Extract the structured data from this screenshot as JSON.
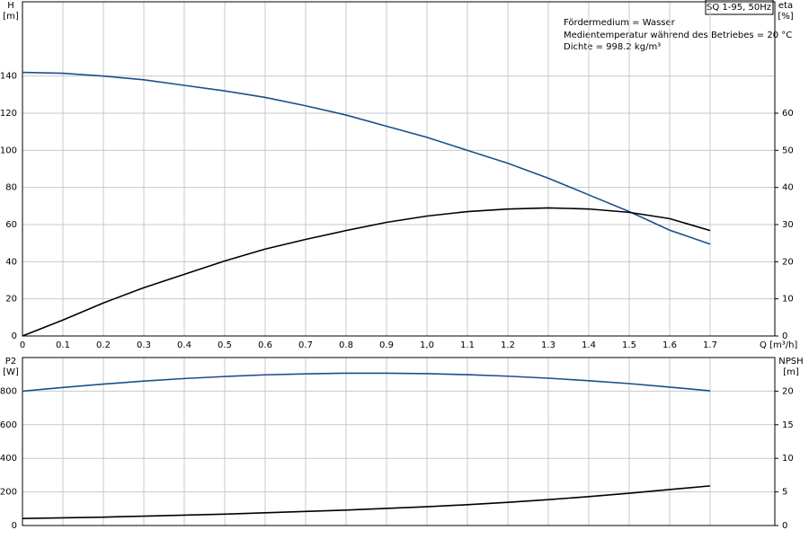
{
  "chart_data": [
    {
      "type": "line",
      "title": "SQ 1-95, 50Hz",
      "annotations": [
        "Fördermedium = Wasser",
        "Medientemperatur während des Betriebes = 20 °C",
        "Dichte = 998.2 kg/m³"
      ],
      "xlabel": "Q [m³/h]",
      "ylabel": "H",
      "yunit": "[m]",
      "y2label": "eta",
      "y2unit": "[%]",
      "x": [
        0,
        0.1,
        0.2,
        0.3,
        0.4,
        0.5,
        0.6,
        0.7,
        0.8,
        0.9,
        1.0,
        1.1,
        1.2,
        1.3,
        1.4,
        1.5,
        1.6,
        1.7
      ],
      "xlim": [
        0,
        1.86
      ],
      "xticks": [
        0,
        0.1,
        0.2,
        0.3,
        0.4,
        0.5,
        0.6,
        0.7,
        0.8,
        0.9,
        {
          "value": 1.0,
          "label": "1,0"
        },
        1.1,
        1.2,
        1.3,
        1.4,
        1.5,
        1.6,
        1.7
      ],
      "ylim": [
        0,
        180
      ],
      "yticks": [
        0,
        20,
        40,
        60,
        80,
        100,
        120,
        140
      ],
      "y2lim": [
        0,
        90
      ],
      "y2ticks": [
        0,
        10,
        20,
        30,
        40,
        50,
        60
      ],
      "grid": true,
      "series": [
        {
          "color": "#1a4f8a",
          "axis": "y",
          "values": [
            142,
            141.5,
            140,
            138,
            135,
            132,
            128.5,
            124,
            119,
            113,
            107,
            100,
            93,
            85,
            76,
            67,
            57,
            49.5
          ]
        },
        {
          "color": "#000000",
          "axis": "y2",
          "values": [
            0,
            4.3,
            8.9,
            13,
            16.6,
            20.2,
            23.4,
            26,
            28.4,
            30.6,
            32.3,
            33.5,
            34.2,
            34.5,
            34.2,
            33.3,
            31.6,
            28.4
          ]
        }
      ]
    },
    {
      "type": "line",
      "ylabel": "P2",
      "yunit": "[W]",
      "y2label": "NPSH",
      "y2unit": "[m]",
      "x": [
        0,
        0.1,
        0.2,
        0.3,
        0.4,
        0.5,
        0.6,
        0.7,
        0.8,
        0.9,
        1.0,
        1.1,
        1.2,
        1.3,
        1.4,
        1.5,
        1.6,
        1.7
      ],
      "xlim": [
        0,
        1.86
      ],
      "ylim": [
        0,
        1000
      ],
      "yticks": [
        0,
        200,
        400,
        600,
        800
      ],
      "y2lim": [
        0,
        25
      ],
      "y2ticks": [
        0,
        5,
        10,
        15,
        20
      ],
      "grid": true,
      "series": [
        {
          "color": "#1a4f8a",
          "axis": "y",
          "values": [
            800,
            822,
            842,
            860,
            875,
            887,
            897,
            903,
            907,
            907,
            904,
            898,
            889,
            877,
            862,
            845,
            824,
            802
          ]
        },
        {
          "color": "#000000",
          "axis": "y2",
          "values": [
            1.05,
            1.15,
            1.25,
            1.4,
            1.55,
            1.7,
            1.9,
            2.1,
            2.3,
            2.55,
            2.8,
            3.1,
            3.45,
            3.85,
            4.3,
            4.8,
            5.35,
            5.9
          ]
        }
      ]
    }
  ]
}
